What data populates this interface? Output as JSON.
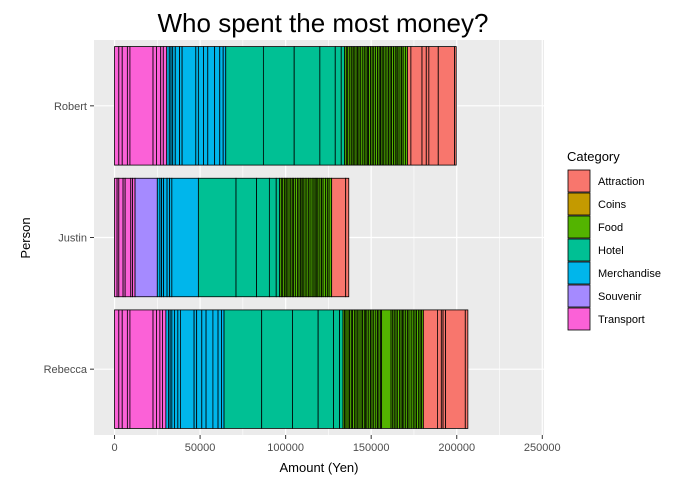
{
  "chart_data": {
    "type": "bar",
    "orientation": "horizontal",
    "stacked": true,
    "title": "Who spent the most money?",
    "xlabel": "Amount (Yen)",
    "ylabel": "Person",
    "xlim": [
      -12000,
      251000
    ],
    "xticks": [
      0,
      50000,
      100000,
      150000,
      200000,
      250000
    ],
    "categories": [
      "Robert",
      "Justin",
      "Rebecca"
    ],
    "legend": {
      "title": "Category",
      "position": "right",
      "entries": [
        {
          "name": "Attraction",
          "color": "#F8766D"
        },
        {
          "name": "Coins",
          "color": "#C49A00"
        },
        {
          "name": "Food",
          "color": "#53B400"
        },
        {
          "name": "Hotel",
          "color": "#00C094"
        },
        {
          "name": "Merchandise",
          "color": "#00B6EB"
        },
        {
          "name": "Souvenir",
          "color": "#A58AFF"
        },
        {
          "name": "Transport",
          "color": "#FB61D7"
        }
      ]
    },
    "grid": true,
    "segments": {
      "Robert": [
        [
          "Transport",
          2500
        ],
        [
          "Transport",
          2000
        ],
        [
          "Transport",
          3000
        ],
        [
          "Transport",
          1500
        ],
        [
          "Transport",
          13500
        ],
        [
          "Transport",
          2000
        ],
        [
          "Transport",
          2500
        ],
        [
          "Transport",
          1500
        ],
        [
          "Transport",
          2000
        ],
        [
          "Merchandise",
          1500
        ],
        [
          "Merchandise",
          1000
        ],
        [
          "Merchandise",
          1000
        ],
        [
          "Merchandise",
          1500
        ],
        [
          "Merchandise",
          2500
        ],
        [
          "Merchandise",
          1500
        ],
        [
          "Merchandise",
          8000
        ],
        [
          "Merchandise",
          1500
        ],
        [
          "Merchandise",
          3000
        ],
        [
          "Merchandise",
          2500
        ],
        [
          "Merchandise",
          4000
        ],
        [
          "Merchandise",
          3000
        ],
        [
          "Merchandise",
          2000
        ],
        [
          "Merchandise",
          1500
        ],
        [
          "Hotel",
          22000
        ],
        [
          "Hotel",
          18000
        ],
        [
          "Hotel",
          15000
        ],
        [
          "Hotel",
          9000
        ],
        [
          "Hotel",
          3500
        ],
        [
          "Hotel",
          2000
        ],
        [
          "Food",
          1000
        ],
        [
          "Food",
          800
        ],
        [
          "Food",
          1200
        ],
        [
          "Food",
          900
        ],
        [
          "Food",
          1000
        ],
        [
          "Food",
          700
        ],
        [
          "Food",
          1100
        ],
        [
          "Food",
          900
        ],
        [
          "Food",
          800
        ],
        [
          "Food",
          1000
        ],
        [
          "Food",
          1200
        ],
        [
          "Food",
          900
        ],
        [
          "Food",
          1000
        ],
        [
          "Food",
          800
        ],
        [
          "Food",
          700
        ],
        [
          "Food",
          1100
        ],
        [
          "Food",
          1000
        ],
        [
          "Food",
          900
        ],
        [
          "Food",
          1000
        ],
        [
          "Food",
          1200
        ],
        [
          "Food",
          1000
        ],
        [
          "Food",
          800
        ],
        [
          "Food",
          900
        ],
        [
          "Food",
          700
        ],
        [
          "Food",
          1100
        ],
        [
          "Food",
          1000
        ],
        [
          "Food",
          900
        ],
        [
          "Food",
          1000
        ],
        [
          "Food",
          800
        ],
        [
          "Food",
          1200
        ],
        [
          "Food",
          1000
        ],
        [
          "Food",
          900
        ],
        [
          "Food",
          700
        ],
        [
          "Food",
          1100
        ],
        [
          "Food",
          1000
        ],
        [
          "Food",
          900
        ],
        [
          "Food",
          1300
        ],
        [
          "Food",
          1200
        ],
        [
          "Attraction",
          2000
        ],
        [
          "Attraction",
          6500
        ],
        [
          "Attraction",
          2500
        ],
        [
          "Attraction",
          1500
        ],
        [
          "Attraction",
          5500
        ],
        [
          "Attraction",
          9500
        ],
        [
          "Attraction",
          1000
        ]
      ],
      "Justin": [
        [
          "Transport",
          1500
        ],
        [
          "Transport",
          1000
        ],
        [
          "Transport",
          2500
        ],
        [
          "Transport",
          1200
        ],
        [
          "Transport",
          3300
        ],
        [
          "Transport",
          1000
        ],
        [
          "Transport",
          1500
        ],
        [
          "Souvenir",
          13000
        ],
        [
          "Merchandise",
          1500
        ],
        [
          "Merchandise",
          1000
        ],
        [
          "Merchandise",
          1200
        ],
        [
          "Merchandise",
          2000
        ],
        [
          "Merchandise",
          1500
        ],
        [
          "Merchandise",
          1300
        ],
        [
          "Merchandise",
          15500
        ],
        [
          "Hotel",
          22000
        ],
        [
          "Hotel",
          12000
        ],
        [
          "Hotel",
          7500
        ],
        [
          "Hotel",
          4000
        ],
        [
          "Hotel",
          2000
        ],
        [
          "Food",
          1000
        ],
        [
          "Food",
          800
        ],
        [
          "Food",
          1000
        ],
        [
          "Food",
          900
        ],
        [
          "Food",
          700
        ],
        [
          "Food",
          1100
        ],
        [
          "Food",
          1000
        ],
        [
          "Food",
          900
        ],
        [
          "Food",
          800
        ],
        [
          "Food",
          1000
        ],
        [
          "Food",
          1200
        ],
        [
          "Food",
          900
        ],
        [
          "Food",
          1000
        ],
        [
          "Food",
          800
        ],
        [
          "Food",
          700
        ],
        [
          "Food",
          1100
        ],
        [
          "Food",
          1000
        ],
        [
          "Food",
          900
        ],
        [
          "Food",
          1000
        ],
        [
          "Food",
          1200
        ],
        [
          "Food",
          1000
        ],
        [
          "Food",
          800
        ],
        [
          "Food",
          900
        ],
        [
          "Food",
          700
        ],
        [
          "Food",
          1100
        ],
        [
          "Food",
          1000
        ],
        [
          "Food",
          900
        ],
        [
          "Food",
          1500
        ],
        [
          "Food",
          1000
        ],
        [
          "Food",
          1000
        ],
        [
          "Food",
          1500
        ],
        [
          "Attraction",
          8200
        ],
        [
          "Attraction",
          1800
        ]
      ],
      "Rebecca": [
        [
          "Transport",
          2500
        ],
        [
          "Transport",
          2000
        ],
        [
          "Transport",
          3000
        ],
        [
          "Transport",
          1500
        ],
        [
          "Transport",
          13500
        ],
        [
          "Transport",
          2000
        ],
        [
          "Transport",
          2000
        ],
        [
          "Transport",
          1500
        ],
        [
          "Transport",
          2000
        ],
        [
          "Merchandise",
          1500
        ],
        [
          "Merchandise",
          1000
        ],
        [
          "Merchandise",
          1000
        ],
        [
          "Merchandise",
          1500
        ],
        [
          "Merchandise",
          2000
        ],
        [
          "Merchandise",
          1500
        ],
        [
          "Merchandise",
          8000
        ],
        [
          "Merchandise",
          1500
        ],
        [
          "Merchandise",
          3000
        ],
        [
          "Merchandise",
          2500
        ],
        [
          "Merchandise",
          4000
        ],
        [
          "Merchandise",
          3000
        ],
        [
          "Merchandise",
          2000
        ],
        [
          "Merchandise",
          1500
        ],
        [
          "Hotel",
          22000
        ],
        [
          "Hotel",
          18000
        ],
        [
          "Hotel",
          15000
        ],
        [
          "Hotel",
          9000
        ],
        [
          "Hotel",
          3500
        ],
        [
          "Hotel",
          2000
        ],
        [
          "Food",
          1000
        ],
        [
          "Food",
          800
        ],
        [
          "Food",
          1200
        ],
        [
          "Food",
          900
        ],
        [
          "Food",
          1000
        ],
        [
          "Food",
          700
        ],
        [
          "Food",
          1100
        ],
        [
          "Food",
          900
        ],
        [
          "Food",
          800
        ],
        [
          "Food",
          1000
        ],
        [
          "Food",
          1200
        ],
        [
          "Food",
          900
        ],
        [
          "Food",
          1000
        ],
        [
          "Food",
          800
        ],
        [
          "Food",
          700
        ],
        [
          "Food",
          1100
        ],
        [
          "Food",
          1000
        ],
        [
          "Food",
          900
        ],
        [
          "Food",
          1000
        ],
        [
          "Food",
          1200
        ],
        [
          "Food",
          1000
        ],
        [
          "Food",
          800
        ],
        [
          "Food",
          900
        ],
        [
          "Food",
          700
        ],
        [
          "Food",
          5500
        ],
        [
          "Food",
          1000
        ],
        [
          "Food",
          900
        ],
        [
          "Food",
          1000
        ],
        [
          "Food",
          800
        ],
        [
          "Food",
          1200
        ],
        [
          "Food",
          1000
        ],
        [
          "Food",
          900
        ],
        [
          "Food",
          700
        ],
        [
          "Food",
          1100
        ],
        [
          "Food",
          1000
        ],
        [
          "Food",
          900
        ],
        [
          "Food",
          1300
        ],
        [
          "Food",
          1200
        ],
        [
          "Food",
          1000
        ],
        [
          "Food",
          900
        ],
        [
          "Food",
          1100
        ],
        [
          "Food",
          1000
        ],
        [
          "Food",
          900
        ],
        [
          "Food",
          1000
        ],
        [
          "Attraction",
          8200
        ],
        [
          "Attraction",
          2300
        ],
        [
          "Attraction",
          1000
        ],
        [
          "Attraction",
          1500
        ],
        [
          "Attraction",
          11500
        ],
        [
          "Attraction",
          1500
        ]
      ]
    }
  }
}
